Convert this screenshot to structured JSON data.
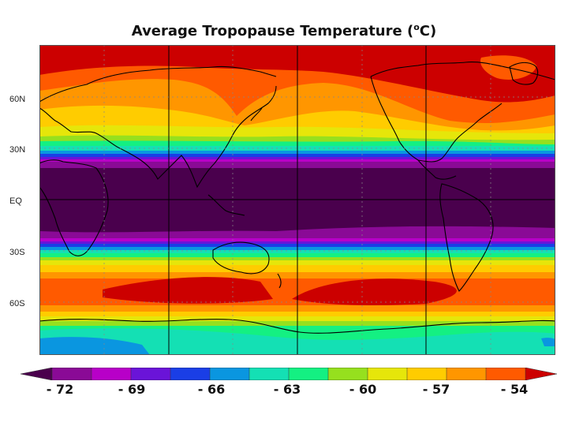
{
  "title": "Average Tropopause Temperature (",
  "title_sup": "o",
  "title_tail": "C)",
  "lat_labels": [
    "60N",
    "30N",
    "EQ",
    "30S",
    "60S"
  ],
  "colorbar": {
    "labels": [
      "- 72",
      "- 69",
      "- 66",
      "- 63",
      "- 60",
      "- 57",
      "- 54"
    ],
    "colors": [
      "#4a004d",
      "#8a0a96",
      "#b800c8",
      "#6a14d8",
      "#1a3ee6",
      "#0a96e0",
      "#14e0b4",
      "#14f082",
      "#96e01e",
      "#e6e60a",
      "#ffcc00",
      "#ff9600",
      "#ff5a00",
      "#cc0000"
    ]
  },
  "band_colors": {
    "deep_purple": "#4a004d",
    "purple": "#8a0a96",
    "magenta": "#b800c8",
    "violet": "#6a14d8",
    "blue": "#1a3ee6",
    "sky": "#0a96e0",
    "teal": "#14e0b4",
    "green": "#14f082",
    "lime": "#96e01e",
    "yellow": "#e6e60a",
    "gold": "#ffcc00",
    "orange": "#ff9600",
    "red_orange": "#ff5a00",
    "red": "#cc0000"
  }
}
